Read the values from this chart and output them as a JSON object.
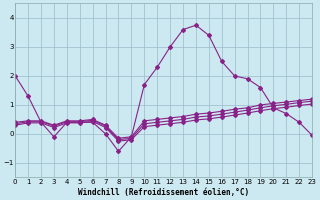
{
  "xlabel": "Windchill (Refroidissement éolien,°C)",
  "background_color": "#cce8f0",
  "grid_color": "#99bbcc",
  "line_color": "#882288",
  "xlim": [
    0,
    23
  ],
  "ylim": [
    -1.5,
    4.5
  ],
  "yticks": [
    -1,
    0,
    1,
    2,
    3,
    4
  ],
  "xticks": [
    0,
    1,
    2,
    3,
    4,
    5,
    6,
    7,
    8,
    9,
    10,
    11,
    12,
    13,
    14,
    15,
    16,
    17,
    18,
    19,
    20,
    21,
    22,
    23
  ],
  "line1_y": [
    2.0,
    1.3,
    0.4,
    -0.1,
    0.4,
    0.4,
    0.4,
    0.0,
    -0.6,
    -0.1,
    1.7,
    2.3,
    3.0,
    3.6,
    3.75,
    3.4,
    2.5,
    2.0,
    1.9,
    1.6,
    0.9,
    0.7,
    0.4,
    -0.05
  ],
  "line2_y": [
    0.4,
    0.45,
    0.45,
    0.3,
    0.45,
    0.45,
    0.5,
    0.3,
    -0.15,
    -0.1,
    0.45,
    0.5,
    0.55,
    0.6,
    0.68,
    0.72,
    0.78,
    0.85,
    0.9,
    1.0,
    1.05,
    1.1,
    1.15,
    1.2
  ],
  "line3_y": [
    0.35,
    0.42,
    0.42,
    0.27,
    0.42,
    0.42,
    0.47,
    0.27,
    -0.2,
    -0.15,
    0.35,
    0.4,
    0.45,
    0.5,
    0.58,
    0.62,
    0.68,
    0.75,
    0.82,
    0.9,
    0.97,
    1.02,
    1.08,
    1.13
  ],
  "line4_y": [
    0.3,
    0.38,
    0.38,
    0.22,
    0.38,
    0.38,
    0.43,
    0.22,
    -0.25,
    -0.2,
    0.25,
    0.3,
    0.35,
    0.4,
    0.48,
    0.52,
    0.58,
    0.65,
    0.72,
    0.8,
    0.87,
    0.92,
    0.98,
    1.03
  ],
  "xlabel_fontsize": 5.5,
  "tick_fontsize": 5,
  "linewidth": 0.8,
  "markersize": 2.0
}
